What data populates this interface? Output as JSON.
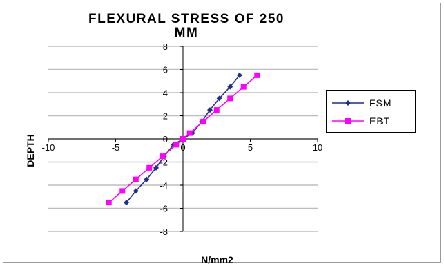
{
  "chart_data": {
    "type": "line",
    "title": "FLEXURAL STRESS OF 250 MM",
    "title_lines": [
      "FLEXURAL STRESS OF 250",
      "MM"
    ],
    "xlabel": "N/mm2",
    "ylabel": "DEPTH",
    "xlim": [
      -10,
      10
    ],
    "ylim": [
      -8,
      8
    ],
    "x_ticks": [
      "-10",
      "-5",
      "0",
      "5",
      "10"
    ],
    "y_ticks": [
      "8",
      "6",
      "4",
      "2",
      "0",
      "-2",
      "-4",
      "-6",
      "-8"
    ],
    "grid": "horizontal",
    "legend_position": "right",
    "series": [
      {
        "name": "FSM",
        "color": "#1f2e8c",
        "marker": "diamond",
        "points": [
          [
            -4.2,
            -5.5
          ],
          [
            -3.5,
            -4.5
          ],
          [
            -2.7,
            -3.5
          ],
          [
            -2.0,
            -2.5
          ],
          [
            -1.4,
            -1.5
          ],
          [
            -0.7,
            -0.5
          ],
          [
            0.0,
            0.0
          ],
          [
            0.7,
            0.5
          ],
          [
            1.4,
            1.5
          ],
          [
            2.0,
            2.5
          ],
          [
            2.7,
            3.5
          ],
          [
            3.5,
            4.5
          ],
          [
            4.2,
            5.5
          ]
        ]
      },
      {
        "name": "EBT",
        "color": "#ff00ff",
        "marker": "square",
        "points": [
          [
            -5.5,
            -5.5
          ],
          [
            -4.5,
            -4.5
          ],
          [
            -3.5,
            -3.5
          ],
          [
            -2.5,
            -2.5
          ],
          [
            -1.5,
            -1.5
          ],
          [
            -0.5,
            -0.5
          ],
          [
            0.0,
            0.0
          ],
          [
            0.5,
            0.5
          ],
          [
            1.5,
            1.5
          ],
          [
            2.5,
            2.5
          ],
          [
            3.5,
            3.5
          ],
          [
            4.5,
            4.5
          ],
          [
            5.5,
            5.5
          ]
        ]
      }
    ]
  }
}
